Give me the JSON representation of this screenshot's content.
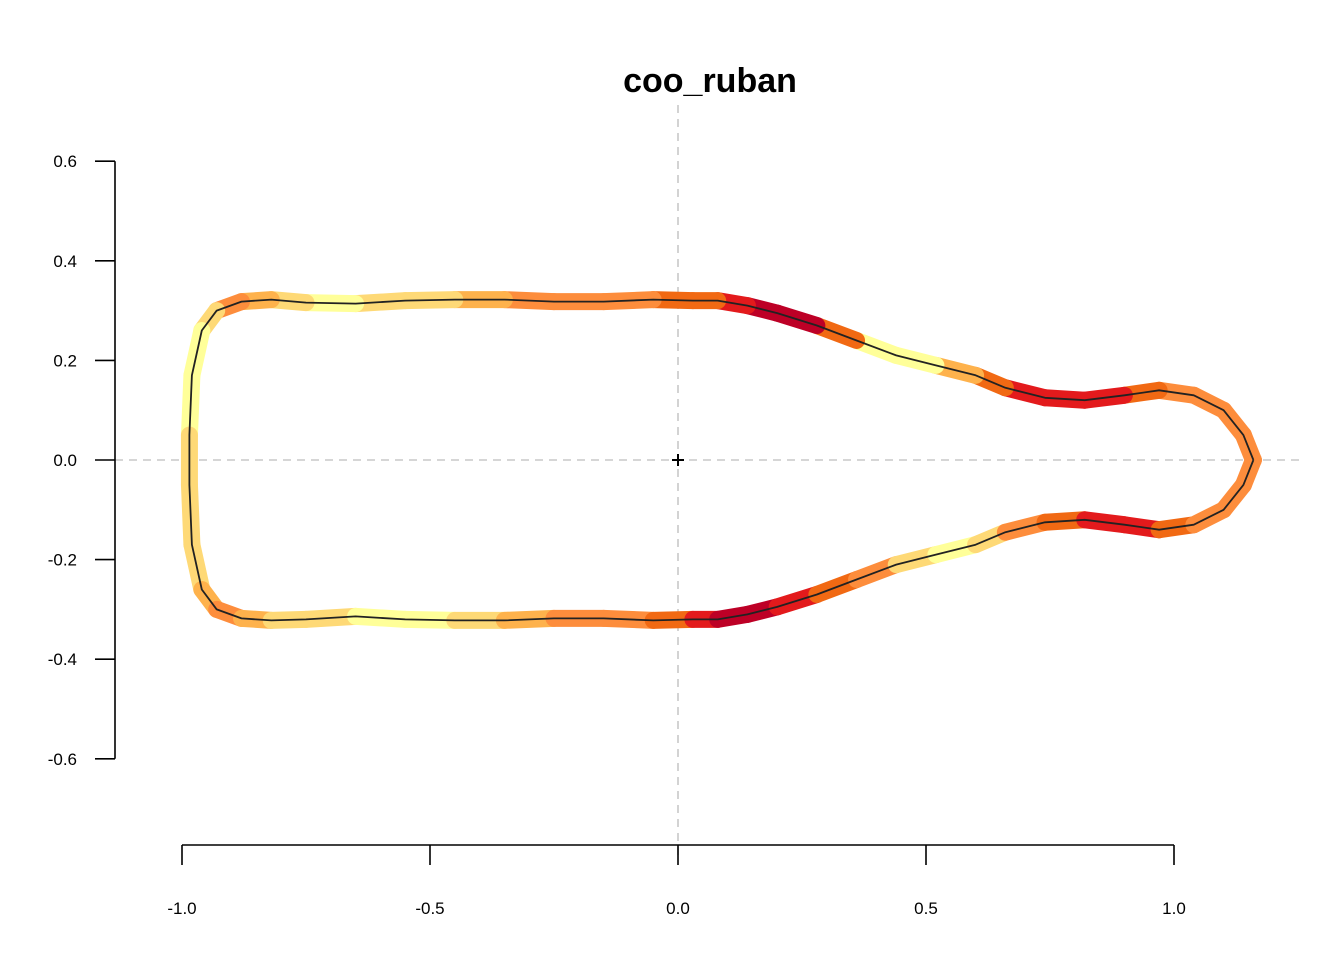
{
  "chart_data": {
    "type": "line",
    "title": "coo_ruban",
    "xlabel": "",
    "ylabel": "",
    "xlim": [
      -1.0,
      1.25
    ],
    "ylim": [
      -0.6,
      0.6
    ],
    "x_ticks": [
      -1.0,
      -0.5,
      0.0,
      0.5,
      1.0
    ],
    "x_tick_labels": [
      "-1.0",
      "-0.5",
      "0.0",
      "0.5",
      "1.0"
    ],
    "y_ticks": [
      -0.6,
      -0.4,
      -0.2,
      0.0,
      0.2,
      0.4,
      0.6
    ],
    "y_tick_labels": [
      "-0.6",
      "-0.4",
      "-0.2",
      "0.0",
      "0.2",
      "0.4",
      "0.6"
    ],
    "guides": {
      "x": 0.0,
      "y": 0.0,
      "style": "dashed",
      "color": "#c8c8c8"
    },
    "centroid": {
      "x": 0.0,
      "y": 0.0,
      "marker": "+"
    },
    "outline_color": "#222222",
    "ribbon_palette": [
      "#ffff99",
      "#fed976",
      "#feb24c",
      "#fd8d3c",
      "#f16913",
      "#e31a1c",
      "#bd0026"
    ],
    "series": [
      {
        "x": [
          1.16,
          1.14,
          1.1,
          1.04,
          0.97,
          0.9,
          0.82,
          0.74,
          0.66,
          0.6,
          0.52,
          0.44,
          0.36,
          0.28,
          0.2,
          0.14,
          0.08,
          0.03,
          -0.05,
          -0.15,
          -0.25,
          -0.35,
          -0.45,
          -0.55,
          -0.65,
          -0.75,
          -0.82,
          -0.88,
          -0.93,
          -0.96,
          -0.98,
          -0.985,
          -0.985,
          -0.98,
          -0.96,
          -0.93,
          -0.88,
          -0.82,
          -0.75,
          -0.65,
          -0.55,
          -0.45,
          -0.35,
          -0.25,
          -0.15,
          -0.05,
          0.03,
          0.08,
          0.14,
          0.2,
          0.28,
          0.36,
          0.44,
          0.52,
          0.6,
          0.66,
          0.74,
          0.82,
          0.9,
          0.97,
          1.04,
          1.1,
          1.14,
          1.16
        ],
        "y": [
          0.0,
          0.05,
          0.1,
          0.13,
          0.14,
          0.13,
          0.12,
          0.125,
          0.145,
          0.17,
          0.19,
          0.21,
          0.24,
          0.27,
          0.295,
          0.31,
          0.32,
          0.32,
          0.322,
          0.318,
          0.318,
          0.322,
          0.322,
          0.32,
          0.314,
          0.316,
          0.322,
          0.318,
          0.3,
          0.26,
          0.17,
          0.05,
          -0.05,
          -0.17,
          -0.26,
          -0.3,
          -0.318,
          -0.322,
          -0.32,
          -0.314,
          -0.32,
          -0.322,
          -0.322,
          -0.318,
          -0.318,
          -0.322,
          -0.32,
          -0.32,
          -0.31,
          -0.295,
          -0.27,
          -0.24,
          -0.21,
          -0.19,
          -0.17,
          -0.145,
          -0.125,
          -0.12,
          -0.13,
          -0.14,
          -0.13,
          -0.1,
          -0.05,
          0.0
        ],
        "intensity": [
          3,
          3,
          3,
          3,
          4,
          5,
          5,
          5,
          4,
          2,
          0,
          0,
          4,
          6,
          6,
          5,
          4,
          4,
          3,
          3,
          3,
          2,
          1,
          1,
          0,
          1,
          2,
          3,
          1,
          0,
          0,
          1,
          1,
          1,
          2,
          3,
          2,
          1,
          1,
          0,
          0,
          1,
          2,
          3,
          3,
          4,
          5,
          6,
          6,
          5,
          4,
          3,
          1,
          0,
          1,
          3,
          4,
          5,
          5,
          4,
          3,
          3,
          3,
          3
        ]
      }
    ]
  }
}
